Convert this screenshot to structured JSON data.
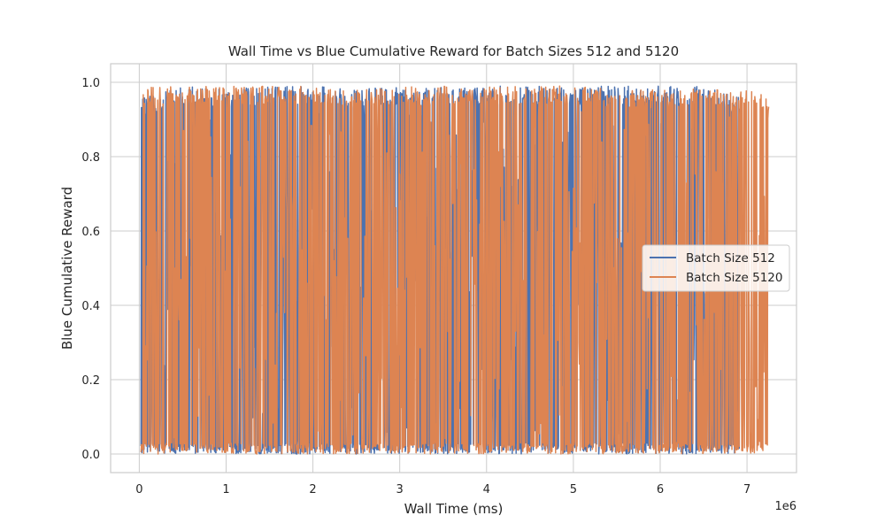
{
  "chart_data": {
    "type": "line",
    "title": "Wall Time vs Blue Cumulative Reward for Batch Sizes 512 and 5120",
    "xlabel": "Wall Time (ms)",
    "ylabel": "Blue Cumulative Reward",
    "x_offset_text": "1e6",
    "xlim": [
      -330000,
      7570000
    ],
    "ylim": [
      -0.05,
      1.05
    ],
    "x_ticks": [
      {
        "value": 0,
        "label": "0"
      },
      {
        "value": 1000000,
        "label": "1"
      },
      {
        "value": 2000000,
        "label": "2"
      },
      {
        "value": 3000000,
        "label": "3"
      },
      {
        "value": 4000000,
        "label": "4"
      },
      {
        "value": 5000000,
        "label": "5"
      },
      {
        "value": 6000000,
        "label": "6"
      },
      {
        "value": 7000000,
        "label": "7"
      }
    ],
    "y_ticks": [
      {
        "value": 0.0,
        "label": "0.0"
      },
      {
        "value": 0.2,
        "label": "0.2"
      },
      {
        "value": 0.4,
        "label": "0.4"
      },
      {
        "value": 0.6,
        "label": "0.6"
      },
      {
        "value": 0.8,
        "label": "0.8"
      },
      {
        "value": 1.0,
        "label": "1.0"
      }
    ],
    "grid": true,
    "legend": {
      "placement": "center-right"
    },
    "series": [
      {
        "name": "Batch Size 512",
        "color": "#4c72b0",
        "x_range": [
          20000,
          6920000
        ],
        "y_range": [
          0.0,
          0.99
        ],
        "num_points": 1400,
        "x": [
          20000,
          500000,
          1000000,
          1500000,
          2000000,
          2500000,
          3000000,
          3500000,
          4000000,
          4500000,
          5000000,
          5500000,
          6000000,
          6500000,
          6920000
        ],
        "y_min": [
          0.0,
          0.0,
          0.0,
          0.0,
          0.0,
          0.0,
          0.0,
          0.0,
          0.0,
          0.0,
          0.0,
          0.0,
          0.0,
          0.0,
          0.0
        ],
        "y_max": [
          0.96,
          0.99,
          0.98,
          0.99,
          0.99,
          0.98,
          0.99,
          0.99,
          0.99,
          0.99,
          0.99,
          0.99,
          0.99,
          0.99,
          0.96
        ]
      },
      {
        "name": "Batch Size 5120",
        "color": "#dd8452",
        "x_range": [
          20000,
          7250000
        ],
        "y_range": [
          0.0,
          0.99
        ],
        "num_points": 1400,
        "x": [
          20000,
          500000,
          1000000,
          1500000,
          2000000,
          2500000,
          3000000,
          3500000,
          4000000,
          4500000,
          5000000,
          5500000,
          6000000,
          6500000,
          7000000,
          7250000
        ],
        "y_min": [
          0.0,
          0.0,
          0.0,
          0.0,
          0.0,
          0.0,
          0.0,
          0.0,
          0.0,
          0.0,
          0.0,
          0.0,
          0.0,
          0.0,
          0.0,
          0.0
        ],
        "y_max": [
          0.99,
          0.99,
          0.99,
          0.99,
          0.99,
          0.98,
          0.99,
          0.99,
          0.99,
          0.99,
          0.99,
          0.98,
          0.98,
          0.99,
          0.98,
          0.96
        ]
      }
    ]
  }
}
